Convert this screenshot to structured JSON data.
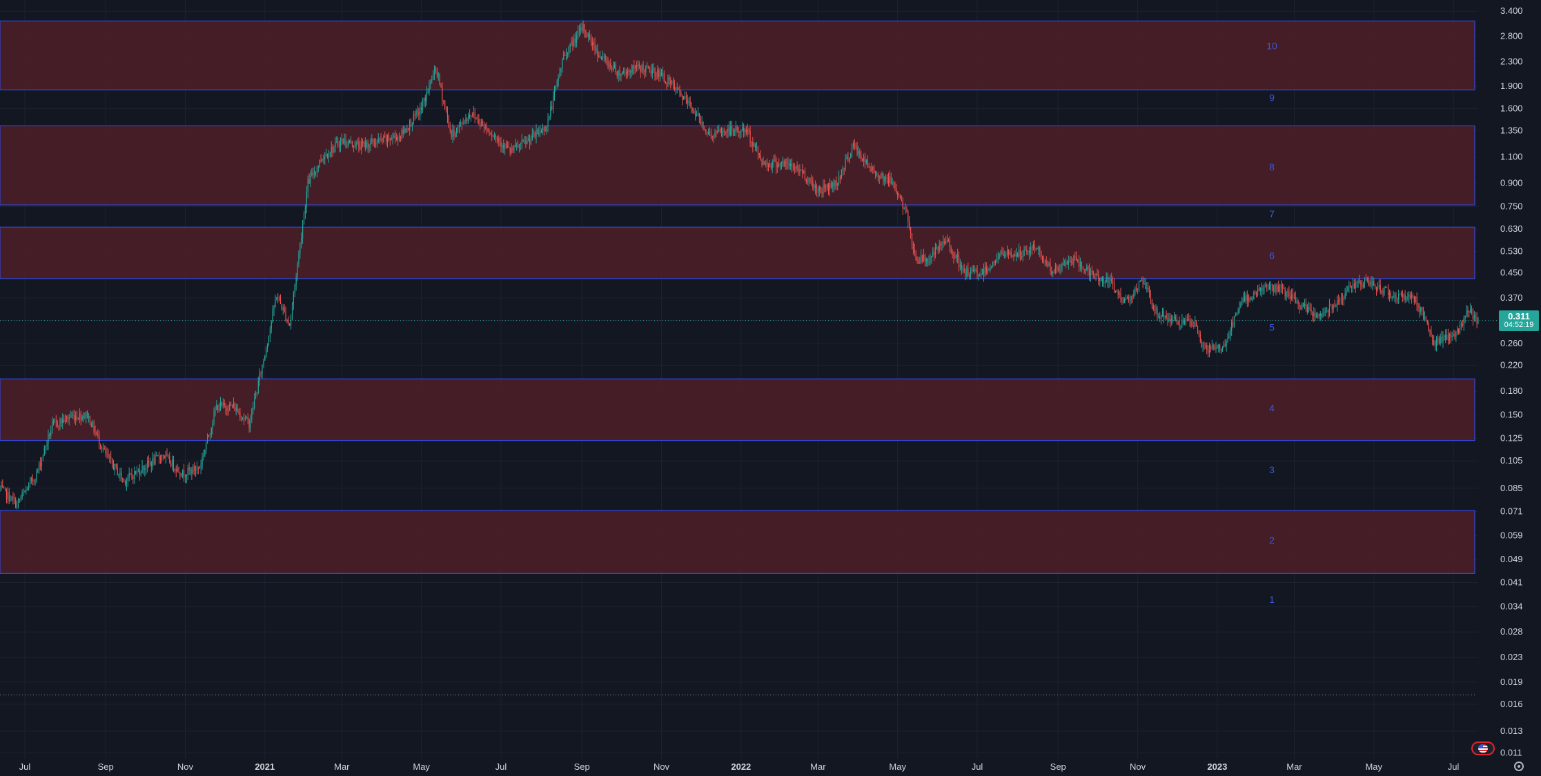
{
  "chart_data": {
    "type": "candlestick",
    "scale": "log",
    "grid": true,
    "y_ticks": [
      "3.400",
      "2.800",
      "2.300",
      "1.900",
      "1.600",
      "1.350",
      "1.100",
      "0.900",
      "0.750",
      "0.630",
      "0.530",
      "0.450",
      "0.370",
      "0.311",
      "0.260",
      "0.220",
      "0.180",
      "0.150",
      "0.125",
      "0.105",
      "0.085",
      "0.071",
      "0.059",
      "0.049",
      "0.041",
      "0.034",
      "0.028",
      "0.023",
      "0.019",
      "0.016",
      "0.013",
      "0.011"
    ],
    "x_ticks": [
      {
        "label": "Jul",
        "date": "2020-07-01",
        "major": false
      },
      {
        "label": "Sep",
        "date": "2020-09-01",
        "major": false
      },
      {
        "label": "Nov",
        "date": "2020-11-01",
        "major": false
      },
      {
        "label": "2021",
        "date": "2021-01-01",
        "major": true
      },
      {
        "label": "Mar",
        "date": "2021-03-01",
        "major": false
      },
      {
        "label": "May",
        "date": "2021-05-01",
        "major": false
      },
      {
        "label": "Jul",
        "date": "2021-07-01",
        "major": false
      },
      {
        "label": "Sep",
        "date": "2021-09-01",
        "major": false
      },
      {
        "label": "Nov",
        "date": "2021-11-01",
        "major": false
      },
      {
        "label": "2022",
        "date": "2022-01-01",
        "major": true
      },
      {
        "label": "Mar",
        "date": "2022-03-01",
        "major": false
      },
      {
        "label": "May",
        "date": "2022-05-01",
        "major": false
      },
      {
        "label": "Jul",
        "date": "2022-07-01",
        "major": false
      },
      {
        "label": "Sep",
        "date": "2022-09-01",
        "major": false
      },
      {
        "label": "Nov",
        "date": "2022-11-01",
        "major": false
      },
      {
        "label": "2023",
        "date": "2023-01-01",
        "major": true
      },
      {
        "label": "Mar",
        "date": "2023-03-01",
        "major": false
      },
      {
        "label": "May",
        "date": "2023-05-01",
        "major": false
      },
      {
        "label": "Jul",
        "date": "2023-07-01",
        "major": false
      }
    ],
    "x_range": [
      "2020-06-12",
      "2023-07-20"
    ],
    "y_range": [
      0.0105,
      3.55
    ],
    "price_series": [
      [
        "2020-06-12",
        0.085
      ],
      [
        "2020-06-25",
        0.075
      ],
      [
        "2020-07-10",
        0.095
      ],
      [
        "2020-07-22",
        0.138
      ],
      [
        "2020-08-05",
        0.148
      ],
      [
        "2020-08-18",
        0.15
      ],
      [
        "2020-09-01",
        0.11
      ],
      [
        "2020-09-15",
        0.09
      ],
      [
        "2020-09-30",
        0.1
      ],
      [
        "2020-10-15",
        0.11
      ],
      [
        "2020-10-30",
        0.095
      ],
      [
        "2020-11-12",
        0.1
      ],
      [
        "2020-11-25",
        0.16
      ],
      [
        "2020-12-08",
        0.16
      ],
      [
        "2020-12-20",
        0.14
      ],
      [
        "2021-01-01",
        0.24
      ],
      [
        "2021-01-10",
        0.38
      ],
      [
        "2021-01-20",
        0.3
      ],
      [
        "2021-02-03",
        0.9
      ],
      [
        "2021-02-14",
        1.1
      ],
      [
        "2021-03-01",
        1.25
      ],
      [
        "2021-03-15",
        1.2
      ],
      [
        "2021-04-01",
        1.25
      ],
      [
        "2021-04-15",
        1.3
      ],
      [
        "2021-05-01",
        1.6
      ],
      [
        "2021-05-12",
        2.2
      ],
      [
        "2021-05-24",
        1.3
      ],
      [
        "2021-06-08",
        1.55
      ],
      [
        "2021-06-22",
        1.35
      ],
      [
        "2021-07-08",
        1.15
      ],
      [
        "2021-07-22",
        1.25
      ],
      [
        "2021-08-05",
        1.4
      ],
      [
        "2021-08-18",
        2.4
      ],
      [
        "2021-09-02",
        3.0
      ],
      [
        "2021-09-15",
        2.4
      ],
      [
        "2021-09-30",
        2.1
      ],
      [
        "2021-10-15",
        2.2
      ],
      [
        "2021-10-30",
        2.1
      ],
      [
        "2021-11-10",
        1.9
      ],
      [
        "2021-11-25",
        1.6
      ],
      [
        "2021-12-08",
        1.3
      ],
      [
        "2021-12-22",
        1.35
      ],
      [
        "2022-01-05",
        1.35
      ],
      [
        "2022-01-18",
        1.05
      ],
      [
        "2022-02-01",
        1.05
      ],
      [
        "2022-02-15",
        1.0
      ],
      [
        "2022-03-01",
        0.85
      ],
      [
        "2022-03-15",
        0.9
      ],
      [
        "2022-03-28",
        1.2
      ],
      [
        "2022-04-10",
        1.0
      ],
      [
        "2022-04-28",
        0.9
      ],
      [
        "2022-05-08",
        0.7
      ],
      [
        "2022-05-15",
        0.5
      ],
      [
        "2022-05-25",
        0.5
      ],
      [
        "2022-06-08",
        0.58
      ],
      [
        "2022-06-20",
        0.45
      ],
      [
        "2022-07-05",
        0.45
      ],
      [
        "2022-07-20",
        0.52
      ],
      [
        "2022-08-05",
        0.52
      ],
      [
        "2022-08-15",
        0.55
      ],
      [
        "2022-08-28",
        0.45
      ],
      [
        "2022-09-12",
        0.5
      ],
      [
        "2022-09-28",
        0.44
      ],
      [
        "2022-10-10",
        0.42
      ],
      [
        "2022-10-22",
        0.36
      ],
      [
        "2022-11-05",
        0.42
      ],
      [
        "2022-11-15",
        0.33
      ],
      [
        "2022-11-30",
        0.31
      ],
      [
        "2022-12-15",
        0.3
      ],
      [
        "2022-12-22",
        0.25
      ],
      [
        "2023-01-05",
        0.25
      ],
      [
        "2023-01-20",
        0.36
      ],
      [
        "2023-02-05",
        0.4
      ],
      [
        "2023-02-18",
        0.4
      ],
      [
        "2023-03-05",
        0.35
      ],
      [
        "2023-03-20",
        0.32
      ],
      [
        "2023-04-05",
        0.37
      ],
      [
        "2023-04-18",
        0.42
      ],
      [
        "2023-05-01",
        0.41
      ],
      [
        "2023-05-15",
        0.38
      ],
      [
        "2023-06-01",
        0.37
      ],
      [
        "2023-06-12",
        0.3
      ],
      [
        "2023-06-15",
        0.26
      ],
      [
        "2023-06-25",
        0.27
      ],
      [
        "2023-07-05",
        0.285
      ],
      [
        "2023-07-12",
        0.34
      ],
      [
        "2023-07-20",
        0.311
      ]
    ],
    "zones": [
      {
        "low": 1.85,
        "high": 3.15
      },
      {
        "low": 0.76,
        "high": 1.4
      },
      {
        "low": 0.43,
        "high": 0.64
      },
      {
        "low": 0.123,
        "high": 0.198
      },
      {
        "low": 0.044,
        "high": 0.0715
      }
    ],
    "zone_labels": [
      {
        "text": "10",
        "price": 2.6
      },
      {
        "text": "9",
        "price": 1.74
      },
      {
        "text": "8",
        "price": 1.02
      },
      {
        "text": "7",
        "price": 0.71
      },
      {
        "text": "6",
        "price": 0.513
      },
      {
        "text": "5",
        "price": 0.295
      },
      {
        "text": "4",
        "price": 0.158
      },
      {
        "text": "3",
        "price": 0.098
      },
      {
        "text": "2",
        "price": 0.057
      },
      {
        "text": "1",
        "price": 0.036
      }
    ],
    "last_price": {
      "value": 0.311,
      "label": "0.311",
      "timer": "04:52:19"
    },
    "reference_line_price": 0.0172,
    "colors": {
      "background": "#131722",
      "grid": "#1e2230",
      "up": "#26a69a",
      "down": "#ef5350",
      "zone_fill": "#4a1e27",
      "zone_border": "#3448d9",
      "zone_label": "#3d57d9",
      "axis_text": "#d1d4dc",
      "last_price": "#26a69a"
    }
  },
  "icons": {
    "flag": "us-flag-icon",
    "settings": "settings-icon"
  }
}
